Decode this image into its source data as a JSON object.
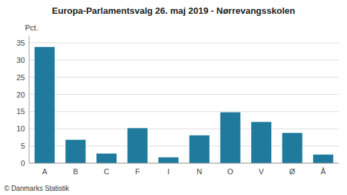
{
  "chart_data": {
    "type": "bar",
    "title": "Europa-Parlamentsvalg 26. maj 2019 - Nørrevangsskolen",
    "categories": [
      "A",
      "B",
      "C",
      "F",
      "I",
      "N",
      "O",
      "V",
      "Ø",
      "Å"
    ],
    "values": [
      33.8,
      6.8,
      2.8,
      10.2,
      1.7,
      8.1,
      14.8,
      12.0,
      8.8,
      2.5
    ],
    "color": "#1f7a9e",
    "ylabel": "Pct.",
    "ylim": [
      0,
      37
    ],
    "yticks": [
      0,
      5,
      10,
      15,
      20,
      25,
      30,
      35
    ],
    "grid": true,
    "footer": "© Danmarks Statistik"
  }
}
